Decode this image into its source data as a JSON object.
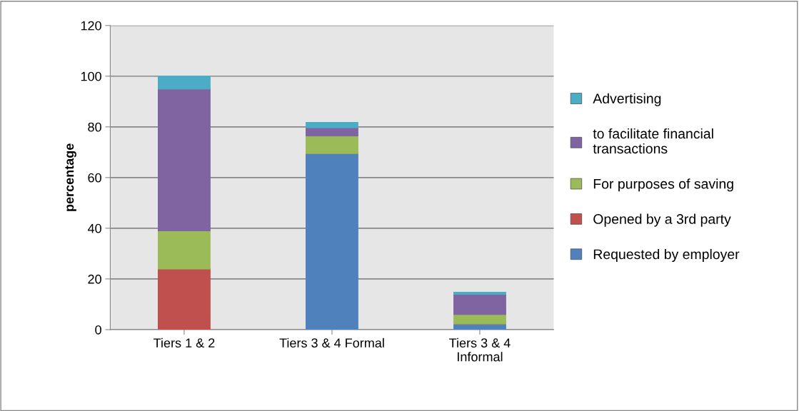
{
  "chart_data": {
    "type": "bar",
    "stacked": true,
    "ylabel": "percentage",
    "categories": [
      "Tiers 1 & 2",
      "Tiers 3 & 4 Formal",
      "Tiers 3 & 4\nInformal"
    ],
    "series": [
      {
        "name": "Requested by employer",
        "color": "#4f81bd",
        "values": [
          0,
          69.5,
          2.3
        ]
      },
      {
        "name": "Opened by a 3rd party",
        "color": "#c0504d",
        "values": [
          24,
          0,
          0
        ]
      },
      {
        "name": "For purposes of saving",
        "color": "#9bbb59",
        "values": [
          15,
          7,
          3.7
        ]
      },
      {
        "name": "to facilitate financial\ntransactions",
        "color": "#8064a2",
        "values": [
          56,
          3.2,
          8
        ]
      },
      {
        "name": "Advertising",
        "color": "#4bacc6",
        "values": [
          5,
          2,
          0.7
        ]
      }
    ],
    "ylim": [
      0,
      120
    ],
    "yticks": [
      0,
      20,
      40,
      60,
      80,
      100,
      120
    ],
    "grid": "y",
    "legend": "right"
  }
}
